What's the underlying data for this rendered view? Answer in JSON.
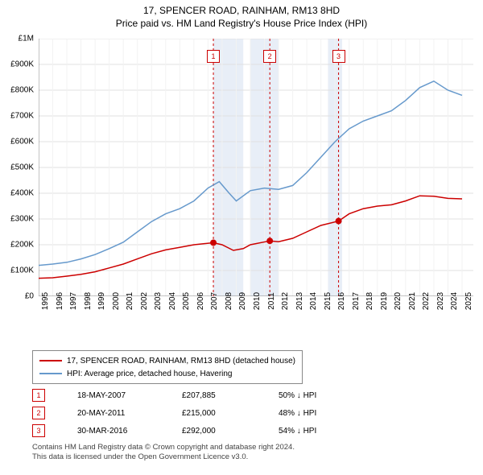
{
  "title_main": "17, SPENCER ROAD, RAINHAM, RM13 8HD",
  "title_sub": "Price paid vs. HM Land Registry's House Price Index (HPI)",
  "chart": {
    "type": "line",
    "background_color": "#ffffff",
    "grid_color": "#e0e0e0",
    "band_color": "#e8eef7",
    "xlim": [
      1995,
      2025.8
    ],
    "ylim": [
      0,
      1000000
    ],
    "y_ticks": [
      0,
      100000,
      200000,
      300000,
      400000,
      500000,
      600000,
      700000,
      800000,
      900000,
      1000000
    ],
    "y_tick_labels": [
      "£0",
      "£100K",
      "£200K",
      "£300K",
      "£400K",
      "£500K",
      "£600K",
      "£700K",
      "£800K",
      "£900K",
      "£1M"
    ],
    "x_ticks": [
      1995,
      1996,
      1997,
      1998,
      1999,
      2000,
      2001,
      2002,
      2003,
      2004,
      2005,
      2006,
      2007,
      2008,
      2009,
      2010,
      2011,
      2012,
      2013,
      2014,
      2015,
      2016,
      2017,
      2018,
      2019,
      2020,
      2021,
      2022,
      2023,
      2024,
      2025
    ],
    "label_fontsize": 10,
    "line_width": 1.5,
    "series_property": {
      "label": "17, SPENCER ROAD, RAINHAM, RM13 8HD (detached house)",
      "color": "#cc0000",
      "data": [
        [
          1995,
          70000
        ],
        [
          1996,
          72000
        ],
        [
          1997,
          78000
        ],
        [
          1998,
          85000
        ],
        [
          1999,
          95000
        ],
        [
          2000,
          110000
        ],
        [
          2001,
          125000
        ],
        [
          2002,
          145000
        ],
        [
          2003,
          165000
        ],
        [
          2004,
          180000
        ],
        [
          2005,
          190000
        ],
        [
          2006,
          200000
        ],
        [
          2007.38,
          207885
        ],
        [
          2008,
          200000
        ],
        [
          2008.8,
          178000
        ],
        [
          2009.5,
          185000
        ],
        [
          2010,
          200000
        ],
        [
          2011.38,
          215000
        ],
        [
          2012,
          212000
        ],
        [
          2013,
          225000
        ],
        [
          2014,
          250000
        ],
        [
          2015,
          275000
        ],
        [
          2016.25,
          292000
        ],
        [
          2017,
          320000
        ],
        [
          2018,
          340000
        ],
        [
          2019,
          350000
        ],
        [
          2020,
          355000
        ],
        [
          2021,
          370000
        ],
        [
          2022,
          390000
        ],
        [
          2023,
          388000
        ],
        [
          2024,
          380000
        ],
        [
          2025,
          378000
        ]
      ]
    },
    "series_hpi": {
      "label": "HPI: Average price, detached house, Havering",
      "color": "#6699cc",
      "data": [
        [
          1995,
          120000
        ],
        [
          1996,
          125000
        ],
        [
          1997,
          132000
        ],
        [
          1998,
          145000
        ],
        [
          1999,
          162000
        ],
        [
          2000,
          185000
        ],
        [
          2001,
          210000
        ],
        [
          2002,
          250000
        ],
        [
          2003,
          290000
        ],
        [
          2004,
          320000
        ],
        [
          2005,
          340000
        ],
        [
          2006,
          370000
        ],
        [
          2007,
          420000
        ],
        [
          2007.8,
          445000
        ],
        [
          2008.5,
          400000
        ],
        [
          2009,
          370000
        ],
        [
          2010,
          410000
        ],
        [
          2011,
          420000
        ],
        [
          2012,
          415000
        ],
        [
          2013,
          430000
        ],
        [
          2014,
          480000
        ],
        [
          2015,
          540000
        ],
        [
          2016,
          600000
        ],
        [
          2017,
          650000
        ],
        [
          2018,
          680000
        ],
        [
          2019,
          700000
        ],
        [
          2020,
          720000
        ],
        [
          2021,
          760000
        ],
        [
          2022,
          810000
        ],
        [
          2023,
          835000
        ],
        [
          2024,
          800000
        ],
        [
          2025,
          780000
        ]
      ]
    },
    "annotations": [
      {
        "n": "1",
        "x": 2007.38,
        "vline_color": "#cc0000",
        "dash": "3,3"
      },
      {
        "n": "2",
        "x": 2011.38,
        "vline_color": "#cc0000",
        "dash": "3,3"
      },
      {
        "n": "3",
        "x": 2016.25,
        "vline_color": "#cc0000",
        "dash": "3,3"
      }
    ],
    "sale_points": [
      {
        "x": 2007.38,
        "y": 207885
      },
      {
        "x": 2011.38,
        "y": 215000
      },
      {
        "x": 2016.25,
        "y": 292000
      }
    ],
    "sale_point_color": "#cc0000",
    "sale_point_radius": 4
  },
  "legend": {
    "items": [
      {
        "color": "#cc0000",
        "label": "17, SPENCER ROAD, RAINHAM, RM13 8HD (detached house)"
      },
      {
        "color": "#6699cc",
        "label": "HPI: Average price, detached house, Havering"
      }
    ]
  },
  "price_rows": [
    {
      "n": "1",
      "date": "18-MAY-2007",
      "price": "£207,885",
      "pct": "50% ↓ HPI"
    },
    {
      "n": "2",
      "date": "20-MAY-2011",
      "price": "£215,000",
      "pct": "48% ↓ HPI"
    },
    {
      "n": "3",
      "date": "30-MAR-2016",
      "price": "£292,000",
      "pct": "54% ↓ HPI"
    }
  ],
  "disclaimer_line1": "Contains HM Land Registry data © Crown copyright and database right 2024.",
  "disclaimer_line2": "This data is licensed under the Open Government Licence v3.0."
}
